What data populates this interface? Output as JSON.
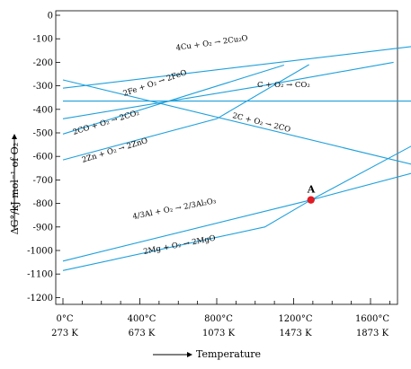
{
  "chart_data": {
    "type": "line",
    "title": "",
    "xlabel": "Temperature",
    "ylabel": "ΔG°/kJ mol⁻¹ of O₂",
    "xlim": [
      0,
      2100
    ],
    "ylim": [
      -1300,
      0
    ],
    "grid": false,
    "legend": "none",
    "line_color": "#1ea0dc",
    "point_color": "#e01b24",
    "y_ticks": [
      {
        "value": 0,
        "label": "0"
      },
      {
        "value": -100,
        "label": "-100"
      },
      {
        "value": -200,
        "label": "-200"
      },
      {
        "value": -300,
        "label": "-300"
      },
      {
        "value": -400,
        "label": "-400"
      },
      {
        "value": -500,
        "label": "-500"
      },
      {
        "value": -600,
        "label": "-600"
      },
      {
        "value": -700,
        "label": "-700"
      },
      {
        "value": -800,
        "label": "-800"
      },
      {
        "value": -900,
        "label": "-900"
      },
      {
        "value": -1000,
        "label": "-1000"
      },
      {
        "value": -1100,
        "label": "-1100"
      },
      {
        "value": -1200,
        "label": "-1200"
      }
    ],
    "x_ticks": [
      {
        "value": 0,
        "celsius": "0°C",
        "kelvin": "273 K"
      },
      {
        "value": 400,
        "celsius": "400°C",
        "kelvin": "673 K"
      },
      {
        "value": 800,
        "celsius": "800°C",
        "kelvin": "1073 K"
      },
      {
        "value": 1200,
        "celsius": "1200°C",
        "kelvin": "1473 K"
      },
      {
        "value": 1600,
        "celsius": "1600°C",
        "kelvin": "1873 K"
      },
      {
        "value": 2000,
        "celsius": "2000°C",
        "kelvin": "2273 K"
      }
    ],
    "series": [
      {
        "name": "4Cu + O₂ → 2Cu₂O",
        "x": [
          0,
          2000
        ],
        "y": [
          -310,
          -115
        ]
      },
      {
        "name": "2Fe + O₂ → 2FeO",
        "x": [
          0,
          1000,
          1720
        ],
        "y": [
          -440,
          -305,
          -200
        ]
      },
      {
        "name": "C + O₂ → CO₂",
        "x": [
          0,
          2100
        ],
        "y": [
          -365,
          -365
        ]
      },
      {
        "name": "2CO + O₂ → 2CO₂",
        "x": [
          0,
          1150
        ],
        "y": [
          -505,
          -212
        ]
      },
      {
        "name": "2Zn + O₂ → 2ZnO",
        "x": [
          0,
          800,
          1280
        ],
        "y": [
          -615,
          -440,
          -210
        ]
      },
      {
        "name": "2C + O₂ → 2CO",
        "x": [
          0,
          2100
        ],
        "y": [
          -275,
          -690
        ]
      },
      {
        "name": "4/3Al + O₂ → 2/3Al₂O₃",
        "x": [
          0,
          1290,
          2100
        ],
        "y": [
          -1045,
          -785,
          -430
        ]
      },
      {
        "name": "2Mg + O₂ → 2MgO",
        "x": [
          0,
          1050,
          1290,
          2100
        ],
        "y": [
          -1085,
          -900,
          -785,
          -610
        ]
      }
    ],
    "annotations": [
      {
        "text": "A",
        "x": 1290,
        "y": -785
      }
    ]
  }
}
